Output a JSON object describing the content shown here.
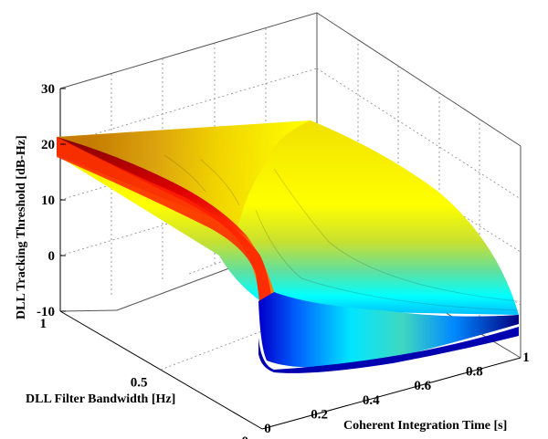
{
  "chart_data": {
    "type": "surface",
    "title": "",
    "xlabel": "Coherent Integration Time [s]",
    "ylabel": "DLL Filter Bandwidth [Hz]",
    "zlabel": "DLL Tracking Threshold [dB-Hz]",
    "xlim": [
      0,
      1
    ],
    "ylim": [
      0,
      1
    ],
    "zlim": [
      -10,
      30
    ],
    "x_ticks": [
      "0",
      "0.2",
      "0.4",
      "0.6",
      "0.8",
      "1"
    ],
    "y_ticks": [
      "0",
      "0.5",
      "1"
    ],
    "z_ticks": [
      "-10",
      "0",
      "10",
      "20",
      "30"
    ],
    "grid": true,
    "colormap": "jet",
    "surface_samples": [
      {
        "bandwidth": 1.0,
        "integration_time": [
          0.02,
          0.2,
          0.4,
          0.6,
          0.8,
          1.0
        ],
        "threshold": [
          20,
          16,
          14,
          13,
          12.5,
          12
        ]
      },
      {
        "bandwidth": 0.5,
        "integration_time": [
          0.02,
          0.2,
          0.4,
          0.6,
          0.8,
          1.0
        ],
        "threshold": [
          18,
          12,
          9,
          7,
          6,
          5
        ]
      },
      {
        "bandwidth": 0.01,
        "integration_time": [
          0.02,
          0.2,
          0.4,
          0.6,
          0.8,
          1.0
        ],
        "threshold": [
          10,
          -5,
          -8,
          -9,
          -9.5,
          -10
        ]
      }
    ]
  }
}
